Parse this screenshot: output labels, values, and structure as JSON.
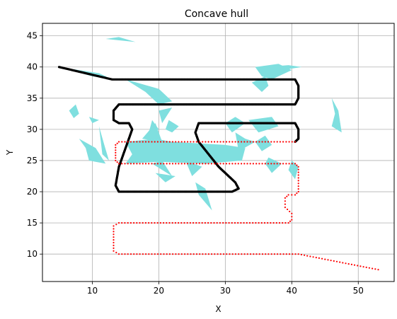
{
  "chart_data": {
    "type": "scatter",
    "title": "Concave hull",
    "xlabel": "X",
    "ylabel": "Y",
    "xlim": [
      2.5,
      55.4
    ],
    "ylim": [
      5.6,
      47.0
    ],
    "xticks": [
      10,
      20,
      30,
      40,
      50
    ],
    "yticks": [
      10,
      15,
      20,
      25,
      30,
      35,
      40,
      45
    ],
    "grid": true,
    "colors": {
      "black_track": "#000000",
      "red_track": "#ff0000",
      "hull_fill": "#7fdfdf",
      "grid": "#b0b0b0"
    },
    "series": [
      {
        "color": "#000000",
        "path": [
          [
            5.0,
            40.0
          ],
          [
            13.0,
            38.0
          ],
          [
            40.5,
            38.0
          ],
          [
            41.0,
            37.0
          ],
          [
            41.0,
            35.0
          ],
          [
            40.5,
            34.0
          ],
          [
            14.0,
            34.0
          ],
          [
            13.2,
            33.0
          ],
          [
            13.2,
            31.5
          ],
          [
            14.0,
            31.0
          ],
          [
            15.5,
            31.0
          ],
          [
            16.0,
            30.0
          ],
          [
            15.0,
            27.0
          ],
          [
            14.0,
            24.0
          ],
          [
            13.5,
            21.0
          ],
          [
            14.0,
            20.0
          ],
          [
            31.0,
            20.0
          ],
          [
            32.0,
            20.5
          ],
          [
            31.5,
            21.5
          ],
          [
            29.0,
            24.0
          ],
          [
            26.0,
            28.0
          ],
          [
            25.5,
            29.5
          ],
          [
            26.0,
            31.0
          ],
          [
            40.5,
            31.0
          ],
          [
            41.0,
            30.0
          ],
          [
            41.0,
            28.5
          ],
          [
            40.5,
            28.0
          ]
        ]
      },
      {
        "color": "#ff0000",
        "path": [
          [
            40.5,
            28.0
          ],
          [
            14.0,
            28.0
          ],
          [
            13.5,
            27.5
          ],
          [
            13.5,
            25.0
          ],
          [
            14.0,
            24.5
          ],
          [
            40.5,
            24.5
          ],
          [
            41.0,
            24.0
          ],
          [
            41.0,
            20.0
          ],
          [
            40.5,
            19.5
          ],
          [
            39.5,
            19.5
          ],
          [
            39.0,
            19.0
          ],
          [
            39.0,
            17.5
          ],
          [
            40.0,
            16.5
          ],
          [
            40.0,
            15.5
          ],
          [
            39.5,
            15.0
          ],
          [
            14.0,
            15.0
          ],
          [
            13.2,
            14.5
          ],
          [
            13.2,
            10.5
          ],
          [
            14.0,
            10.0
          ],
          [
            41.0,
            10.0
          ],
          [
            53.0,
            7.5
          ]
        ]
      }
    ],
    "hull_patches": [
      [
        [
          5.0,
          40.0
        ],
        [
          8.0,
          39.5
        ],
        [
          11.0,
          39.0
        ],
        [
          13.0,
          38.0
        ],
        [
          10.0,
          38.5
        ]
      ],
      [
        [
          12.0,
          44.5
        ],
        [
          16.5,
          44.0
        ],
        [
          14.0,
          44.8
        ]
      ],
      [
        [
          6.5,
          33.0
        ],
        [
          7.5,
          34.0
        ],
        [
          8.0,
          32.5
        ],
        [
          7.2,
          31.8
        ]
      ],
      [
        [
          9.5,
          32.0
        ],
        [
          11.0,
          31.5
        ],
        [
          10.0,
          31.0
        ]
      ],
      [
        [
          8.0,
          28.5
        ],
        [
          10.5,
          27.0
        ],
        [
          12.0,
          24.5
        ],
        [
          9.5,
          25.0
        ],
        [
          9.0,
          27.0
        ]
      ],
      [
        [
          11.0,
          30.5
        ],
        [
          11.8,
          27.5
        ],
        [
          12.5,
          25.0
        ],
        [
          11.5,
          26.0
        ]
      ],
      [
        [
          15.0,
          38.0
        ],
        [
          20.0,
          36.5
        ],
        [
          22.0,
          34.5
        ],
        [
          20.0,
          34.0
        ],
        [
          18.0,
          36.0
        ]
      ],
      [
        [
          20.0,
          33.0
        ],
        [
          22.0,
          33.5
        ],
        [
          20.5,
          31.0
        ]
      ],
      [
        [
          19.0,
          31.5
        ],
        [
          20.0,
          30.0
        ],
        [
          18.5,
          29.5
        ]
      ],
      [
        [
          21.5,
          31.5
        ],
        [
          23.0,
          30.5
        ],
        [
          22.0,
          29.5
        ],
        [
          21.0,
          30.0
        ]
      ],
      [
        [
          15.0,
          28.0
        ],
        [
          19.5,
          28.5
        ],
        [
          22.0,
          28.0
        ],
        [
          30.0,
          27.5
        ],
        [
          33.0,
          27.0
        ],
        [
          32.5,
          25.0
        ],
        [
          27.0,
          24.5
        ],
        [
          20.0,
          24.8
        ],
        [
          15.0,
          24.5
        ],
        [
          16.0,
          26.0
        ]
      ],
      [
        [
          17.5,
          28.5
        ],
        [
          19.5,
          31.0
        ],
        [
          20.5,
          28.0
        ]
      ],
      [
        [
          19.0,
          24.5
        ],
        [
          22.0,
          22.5
        ],
        [
          20.5,
          25.0
        ]
      ],
      [
        [
          19.5,
          23.0
        ],
        [
          22.5,
          22.5
        ],
        [
          21.0,
          21.5
        ]
      ],
      [
        [
          24.0,
          25.0
        ],
        [
          26.5,
          24.0
        ],
        [
          25.0,
          22.5
        ]
      ],
      [
        [
          25.5,
          21.5
        ],
        [
          27.0,
          20.5
        ],
        [
          28.0,
          17.0
        ],
        [
          26.0,
          19.5
        ]
      ],
      [
        [
          30.0,
          31.0
        ],
        [
          31.5,
          32.0
        ],
        [
          33.0,
          31.0
        ],
        [
          31.0,
          29.5
        ]
      ],
      [
        [
          33.5,
          31.5
        ],
        [
          37.0,
          32.0
        ],
        [
          38.0,
          30.5
        ],
        [
          35.0,
          29.5
        ]
      ],
      [
        [
          31.5,
          29.5
        ],
        [
          33.0,
          28.5
        ],
        [
          34.5,
          28.0
        ],
        [
          32.0,
          26.5
        ]
      ],
      [
        [
          34.5,
          28.0
        ],
        [
          36.0,
          29.0
        ],
        [
          37.0,
          27.5
        ],
        [
          35.5,
          26.5
        ]
      ],
      [
        [
          36.5,
          25.5
        ],
        [
          38.5,
          24.5
        ],
        [
          37.0,
          23.0
        ],
        [
          36.0,
          24.5
        ]
      ],
      [
        [
          34.5,
          40.0
        ],
        [
          38.0,
          40.5
        ],
        [
          40.0,
          39.5
        ],
        [
          37.0,
          38.0
        ],
        [
          35.5,
          38.5
        ]
      ],
      [
        [
          34.0,
          37.5
        ],
        [
          36.0,
          38.5
        ],
        [
          36.5,
          37.0
        ],
        [
          35.5,
          36.0
        ]
      ],
      [
        [
          36.0,
          40.0
        ],
        [
          39.5,
          40.3
        ],
        [
          41.5,
          40.0
        ],
        [
          38.5,
          39.5
        ]
      ],
      [
        [
          46.0,
          35.0
        ],
        [
          47.0,
          33.0
        ],
        [
          47.5,
          29.5
        ],
        [
          46.0,
          30.5
        ],
        [
          46.5,
          32.5
        ]
      ],
      [
        [
          40.0,
          25.0
        ],
        [
          41.0,
          24.0
        ],
        [
          40.5,
          22.0
        ],
        [
          39.5,
          23.5
        ]
      ]
    ]
  }
}
